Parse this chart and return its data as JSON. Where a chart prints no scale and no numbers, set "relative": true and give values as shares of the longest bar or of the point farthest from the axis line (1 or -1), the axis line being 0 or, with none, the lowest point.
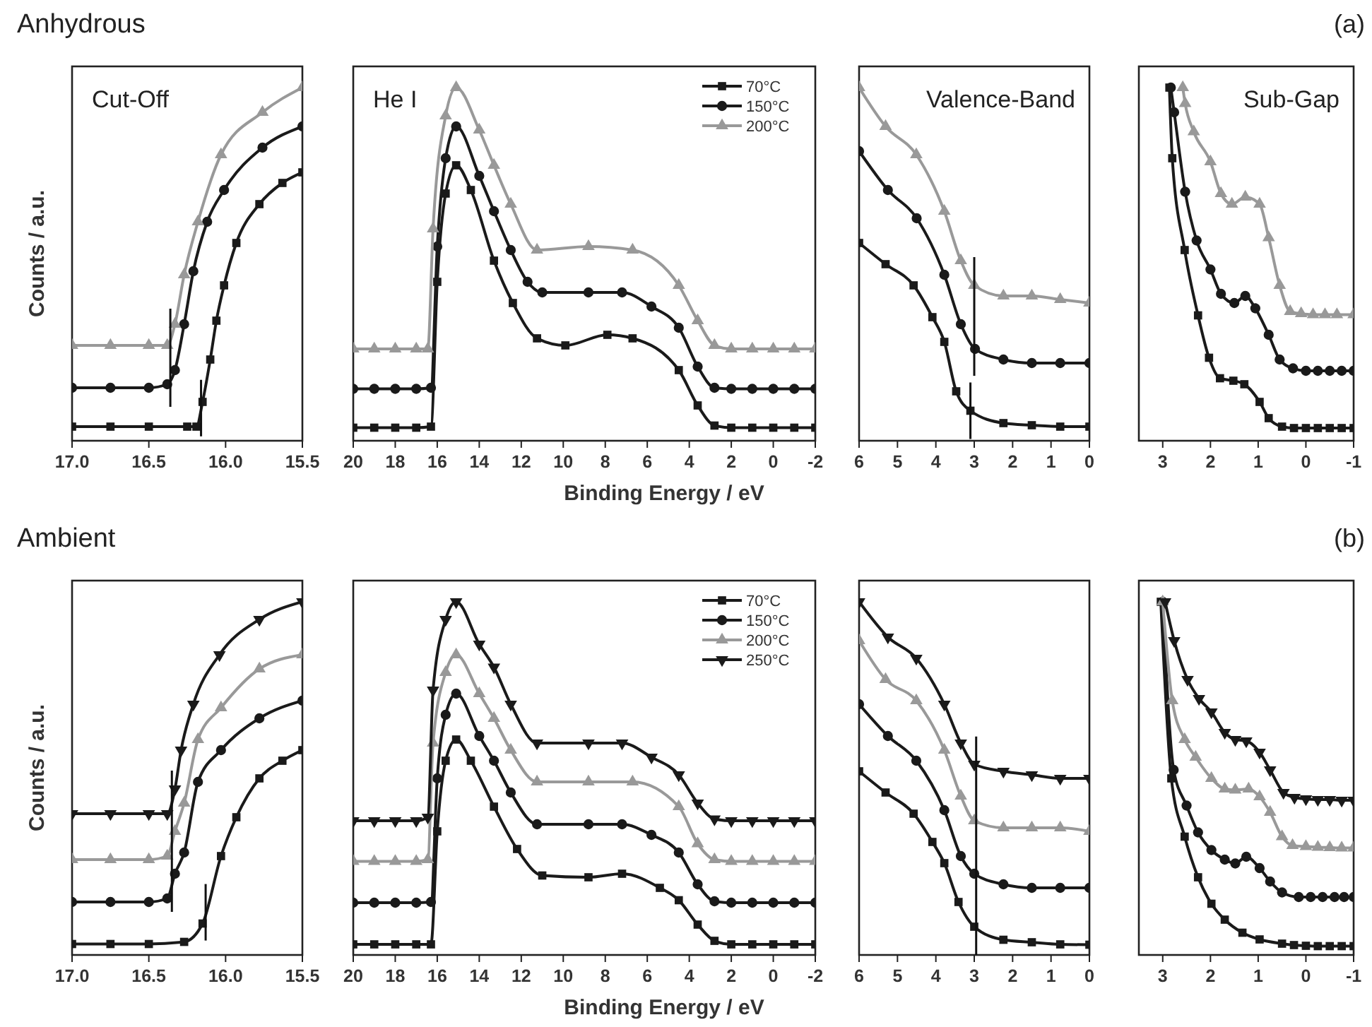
{
  "chart_data": [
    {
      "type": "line",
      "title": "Anhydrous",
      "subtitle": "Cut-Off",
      "ylabel": "Counts / a.u.",
      "relative": true,
      "xlim": [
        17,
        15.5
      ],
      "xticks": [
        {
          "value": 17,
          "label": "17.0"
        },
        {
          "value": 16.5,
          "label": "16.5"
        },
        {
          "value": 16,
          "label": "16.0"
        },
        {
          "value": 15.5,
          "label": "15.5"
        }
      ],
      "ref_lines": [
        {
          "axis": "x",
          "value": 16.16
        },
        {
          "axis": "x",
          "value": 16.36
        }
      ],
      "series": [
        {
          "color": "#1a1a1a",
          "marker": "square",
          "x": [
            17,
            16.75,
            16.5,
            16.25,
            16.19,
            16.15,
            16.1,
            16.06,
            16.01,
            15.93,
            15.78,
            15.63,
            15.5
          ],
          "values": [
            0.04,
            0.04,
            0.04,
            0.04,
            0.04,
            0.11,
            0.23,
            0.34,
            0.44,
            0.56,
            0.67,
            0.73,
            0.76
          ]
        },
        {
          "color": "#1a1a1a",
          "marker": "circle",
          "x": [
            17,
            16.75,
            16.5,
            16.38,
            16.33,
            16.27,
            16.21,
            16.12,
            16.01,
            15.76,
            15.5
          ],
          "values": [
            0.15,
            0.15,
            0.15,
            0.16,
            0.2,
            0.33,
            0.48,
            0.62,
            0.71,
            0.83,
            0.89
          ]
        },
        {
          "color": "#999999",
          "marker": "triangle",
          "x": [
            17,
            16.75,
            16.5,
            16.38,
            16.33,
            16.27,
            16.18,
            16.03,
            15.76,
            15.5
          ],
          "values": [
            0.27,
            0.27,
            0.27,
            0.27,
            0.33,
            0.47,
            0.62,
            0.81,
            0.93,
            1
          ]
        }
      ]
    },
    {
      "type": "line",
      "subtitle": "He I",
      "xlabel": "Binding Energy / eV",
      "legend": "top right",
      "relative": true,
      "xlim": [
        20,
        -2
      ],
      "xticks": [
        20,
        18,
        16,
        14,
        12,
        10,
        8,
        6,
        4,
        2,
        0,
        -2
      ],
      "series": [
        {
          "name": "70°C",
          "color": "#1a1a1a",
          "marker": "square",
          "x": [
            20,
            19,
            18,
            17,
            16.3,
            16,
            15.6,
            15.1,
            14.4,
            13.3,
            12.4,
            11.25,
            9.9,
            7.9,
            6.7,
            4.5,
            3.6,
            2.8,
            2,
            1,
            0,
            -1,
            -2
          ],
          "values": [
            0.037,
            0.037,
            0.037,
            0.037,
            0.04,
            0.45,
            0.7,
            0.78,
            0.71,
            0.51,
            0.39,
            0.29,
            0.27,
            0.3,
            0.29,
            0.2,
            0.1,
            0.043,
            0.037,
            0.037,
            0.037,
            0.037,
            0.037
          ]
        },
        {
          "name": "150°C",
          "color": "#1a1a1a",
          "marker": "circle",
          "x": [
            20,
            19,
            18,
            17,
            16.3,
            16,
            15.6,
            15.1,
            14,
            13.3,
            12.5,
            11.7,
            11,
            8.8,
            7.2,
            5.8,
            4.5,
            3.6,
            2.8,
            2,
            1,
            0,
            -1,
            -2
          ],
          "values": [
            0.147,
            0.147,
            0.147,
            0.147,
            0.15,
            0.55,
            0.8,
            0.89,
            0.75,
            0.65,
            0.54,
            0.45,
            0.42,
            0.42,
            0.42,
            0.38,
            0.32,
            0.21,
            0.15,
            0.147,
            0.147,
            0.147,
            0.147,
            0.147
          ]
        },
        {
          "name": "200°C",
          "color": "#999999",
          "marker": "triangle",
          "x": [
            20,
            19,
            18,
            17,
            16.45,
            16.2,
            15.6,
            15.1,
            14,
            13.3,
            12.5,
            11.25,
            8.8,
            6.7,
            4.5,
            3.6,
            2.8,
            2,
            1,
            0,
            -1,
            -2
          ],
          "values": [
            0.26,
            0.26,
            0.26,
            0.26,
            0.26,
            0.6,
            0.92,
            1,
            0.88,
            0.78,
            0.67,
            0.54,
            0.55,
            0.54,
            0.44,
            0.34,
            0.27,
            0.26,
            0.26,
            0.26,
            0.26,
            0.26
          ]
        }
      ]
    },
    {
      "type": "line",
      "subtitle": "Valence-Band",
      "relative": true,
      "xlim": [
        6,
        0
      ],
      "xticks": [
        6,
        5,
        4,
        3,
        2,
        1,
        0
      ],
      "ref_lines": [
        {
          "axis": "x",
          "value": 3.1
        },
        {
          "axis": "x",
          "value": 3
        }
      ],
      "series": [
        {
          "color": "#1a1a1a",
          "marker": "square",
          "x": [
            6,
            5.31,
            4.58,
            4.09,
            3.78,
            3.47,
            3.1,
            2.24,
            1.5,
            0.76,
            0
          ],
          "values": [
            0.56,
            0.5,
            0.44,
            0.35,
            0.28,
            0.14,
            0.085,
            0.05,
            0.044,
            0.04,
            0.04
          ]
        },
        {
          "color": "#1a1a1a",
          "marker": "circle",
          "x": [
            6,
            5.25,
            4.5,
            3.78,
            3.35,
            2.98,
            2.24,
            1.5,
            0.76,
            0
          ],
          "values": [
            0.82,
            0.71,
            0.63,
            0.47,
            0.33,
            0.26,
            0.23,
            0.22,
            0.22,
            0.22
          ]
        },
        {
          "color": "#999999",
          "marker": "triangle",
          "x": [
            6,
            5.31,
            4.51,
            3.78,
            3.35,
            3,
            2.24,
            1.5,
            0.76,
            0
          ],
          "values": [
            1,
            0.89,
            0.81,
            0.65,
            0.51,
            0.44,
            0.41,
            0.41,
            0.4,
            0.39
          ]
        }
      ]
    },
    {
      "type": "line",
      "subtitle": "Sub-Gap",
      "annotations": [
        "(a)"
      ],
      "relative": true,
      "xlim": [
        3.5,
        -1
      ],
      "xticks": [
        3,
        2,
        1,
        0,
        -1
      ],
      "series": [
        {
          "color": "#1a1a1a",
          "marker": "square",
          "x": [
            2.86,
            2.8,
            2.54,
            2.26,
            2.03,
            1.8,
            1.52,
            1.29,
            0.97,
            0.78,
            0.5,
            0.25,
            0,
            -0.25,
            -0.5,
            -0.75,
            -1
          ],
          "values": [
            1,
            0.8,
            0.54,
            0.355,
            0.235,
            0.177,
            0.17,
            0.16,
            0.11,
            0.064,
            0.04,
            0.036,
            0.036,
            0.036,
            0.036,
            0.036,
            0.036
          ]
        },
        {
          "color": "#1a1a1a",
          "marker": "circle",
          "x": [
            2.83,
            2.76,
            2.53,
            2.29,
            2,
            1.78,
            1.5,
            1.27,
            1.06,
            0.78,
            0.55,
            0.27,
            0,
            -0.25,
            -0.5,
            -0.75,
            -1
          ],
          "values": [
            1,
            0.93,
            0.705,
            0.567,
            0.485,
            0.416,
            0.39,
            0.41,
            0.375,
            0.3,
            0.23,
            0.205,
            0.198,
            0.198,
            0.198,
            0.198,
            0.198
          ]
        },
        {
          "color": "#999999",
          "marker": "triangle",
          "x": [
            2.58,
            2.53,
            2.35,
            2,
            1.78,
            1.55,
            1.27,
            0.97,
            0.78,
            0.55,
            0.33,
            0.1,
            -0.15,
            -0.4,
            -0.65,
            -1
          ],
          "values": [
            1,
            0.955,
            0.875,
            0.79,
            0.7,
            0.67,
            0.69,
            0.67,
            0.575,
            0.44,
            0.366,
            0.36,
            0.357,
            0.357,
            0.357,
            0.357
          ]
        }
      ]
    },
    {
      "type": "line",
      "title": "Ambient",
      "ylabel": "Counts / a.u.",
      "relative": true,
      "xlim": [
        17,
        15.5
      ],
      "xticks": [
        {
          "value": 17,
          "label": "17.0"
        },
        {
          "value": 16.5,
          "label": "16.5"
        },
        {
          "value": 16,
          "label": "16.0"
        },
        {
          "value": 15.5,
          "label": "15.5"
        }
      ],
      "ref_lines": [
        {
          "axis": "x",
          "value": 16.13
        },
        {
          "axis": "x",
          "value": 16.35
        }
      ],
      "series": [
        {
          "color": "#1a1a1a",
          "marker": "square",
          "x": [
            17,
            16.75,
            16.5,
            16.27,
            16.15,
            16.03,
            15.93,
            15.78,
            15.63,
            15.5
          ],
          "values": [
            0.031,
            0.031,
            0.031,
            0.037,
            0.089,
            0.28,
            0.39,
            0.5,
            0.55,
            0.58
          ]
        },
        {
          "color": "#1a1a1a",
          "marker": "circle",
          "x": [
            17,
            16.75,
            16.5,
            16.38,
            16.33,
            16.27,
            16.18,
            16.03,
            15.78,
            15.5
          ],
          "values": [
            0.15,
            0.15,
            0.15,
            0.16,
            0.23,
            0.29,
            0.49,
            0.58,
            0.67,
            0.72
          ]
        },
        {
          "color": "#999999",
          "marker": "triangle",
          "x": [
            17,
            16.75,
            16.5,
            16.38,
            16.33,
            16.27,
            16.18,
            16.03,
            15.78,
            15.5
          ],
          "values": [
            0.27,
            0.27,
            0.27,
            0.28,
            0.35,
            0.43,
            0.61,
            0.7,
            0.81,
            0.85
          ]
        },
        {
          "color": "#1a1a1a",
          "marker": "triangle-down",
          "x": [
            17,
            16.75,
            16.5,
            16.38,
            16.33,
            16.29,
            16.21,
            16.04,
            15.78,
            15.5
          ],
          "values": [
            0.4,
            0.4,
            0.4,
            0.4,
            0.47,
            0.58,
            0.71,
            0.85,
            0.95,
            1
          ]
        }
      ]
    },
    {
      "type": "line",
      "xlabel": "Binding Energy / eV",
      "legend": "top right",
      "relative": true,
      "xlim": [
        20,
        -2
      ],
      "xticks": [
        20,
        18,
        16,
        14,
        12,
        10,
        8,
        6,
        4,
        2,
        0,
        -2
      ],
      "series": [
        {
          "name": "70°C",
          "color": "#1a1a1a",
          "marker": "square",
          "x": [
            20,
            19,
            18,
            17,
            16.3,
            16,
            15.6,
            15.1,
            14.4,
            13.3,
            12.2,
            11,
            8.8,
            7.2,
            5.4,
            4.5,
            3.6,
            2.8,
            2,
            1,
            0,
            -1,
            -2
          ],
          "values": [
            0.03,
            0.03,
            0.03,
            0.03,
            0.03,
            0.35,
            0.55,
            0.61,
            0.55,
            0.42,
            0.3,
            0.225,
            0.22,
            0.23,
            0.19,
            0.155,
            0.086,
            0.04,
            0.03,
            0.03,
            0.03,
            0.03,
            0.03
          ]
        },
        {
          "name": "150°C",
          "color": "#1a1a1a",
          "marker": "circle",
          "x": [
            20,
            19,
            18,
            17,
            16.3,
            16,
            15.6,
            15.1,
            14,
            13.3,
            12.5,
            11.25,
            8.8,
            7.2,
            5.8,
            4.5,
            3.6,
            2.8,
            2,
            1,
            0,
            -1,
            -2
          ],
          "values": [
            0.148,
            0.148,
            0.148,
            0.148,
            0.15,
            0.5,
            0.68,
            0.74,
            0.62,
            0.55,
            0.46,
            0.37,
            0.37,
            0.37,
            0.34,
            0.29,
            0.2,
            0.152,
            0.148,
            0.148,
            0.148,
            0.148,
            0.148
          ]
        },
        {
          "name": "200°C",
          "color": "#999999",
          "marker": "triangle",
          "x": [
            20,
            19,
            18,
            17,
            16.45,
            16.2,
            15.6,
            15.1,
            14,
            13.3,
            12.5,
            11.25,
            8.8,
            6.7,
            4.5,
            3.6,
            2.8,
            2,
            1,
            0,
            -1,
            -2
          ],
          "values": [
            0.265,
            0.265,
            0.265,
            0.265,
            0.27,
            0.6,
            0.8,
            0.85,
            0.74,
            0.67,
            0.58,
            0.49,
            0.49,
            0.49,
            0.42,
            0.315,
            0.27,
            0.265,
            0.265,
            0.265,
            0.265,
            0.265
          ]
        },
        {
          "name": "250°C",
          "color": "#1a1a1a",
          "marker": "triangle-down",
          "x": [
            20,
            19,
            18,
            17,
            16.45,
            16.2,
            15.6,
            15.1,
            14,
            13.3,
            12.5,
            11.25,
            8.8,
            7.2,
            5.8,
            4.5,
            3.6,
            2.8,
            2,
            1,
            0,
            -1,
            -2
          ],
          "values": [
            0.38,
            0.38,
            0.38,
            0.38,
            0.39,
            0.75,
            0.95,
            1,
            0.88,
            0.815,
            0.71,
            0.6,
            0.6,
            0.6,
            0.56,
            0.51,
            0.43,
            0.385,
            0.38,
            0.38,
            0.38,
            0.38,
            0.38
          ]
        }
      ]
    },
    {
      "type": "line",
      "relative": true,
      "xlim": [
        6,
        0
      ],
      "xticks": [
        6,
        5,
        4,
        3,
        2,
        1,
        0
      ],
      "ref_lines": [
        {
          "axis": "x",
          "value": 2.95
        }
      ],
      "series": [
        {
          "color": "#1a1a1a",
          "marker": "square",
          "x": [
            6,
            5.31,
            4.58,
            4.09,
            3.78,
            3.41,
            3,
            2.24,
            1.5,
            0.76,
            0
          ],
          "values": [
            0.52,
            0.46,
            0.4,
            0.32,
            0.26,
            0.15,
            0.08,
            0.043,
            0.036,
            0.03,
            0.029
          ]
        },
        {
          "color": "#1a1a1a",
          "marker": "circle",
          "x": [
            6,
            5.25,
            4.51,
            3.78,
            3.35,
            3,
            2.24,
            1.5,
            0.76,
            0
          ],
          "values": [
            0.71,
            0.62,
            0.55,
            0.41,
            0.28,
            0.23,
            0.2,
            0.19,
            0.19,
            0.19
          ]
        },
        {
          "color": "#999999",
          "marker": "triangle",
          "x": [
            6,
            5.31,
            4.51,
            3.78,
            3.35,
            3,
            2.24,
            1.5,
            0.76,
            0
          ],
          "values": [
            0.89,
            0.78,
            0.72,
            0.58,
            0.45,
            0.38,
            0.36,
            0.36,
            0.36,
            0.35
          ]
        },
        {
          "color": "#1a1a1a",
          "marker": "triangle-down",
          "x": [
            6,
            5.25,
            4.51,
            3.78,
            3.35,
            3,
            2.24,
            1.5,
            0.76,
            0
          ],
          "values": [
            1,
            0.9,
            0.84,
            0.71,
            0.6,
            0.54,
            0.52,
            0.51,
            0.5,
            0.5
          ]
        }
      ]
    },
    {
      "type": "line",
      "annotations": [
        "(b)"
      ],
      "relative": true,
      "xlim": [
        3.5,
        -1
      ],
      "xticks": [
        3,
        2,
        1,
        0,
        -1
      ],
      "series": [
        {
          "color": "#1a1a1a",
          "marker": "square",
          "x": [
            3.04,
            2.82,
            2.54,
            2.26,
            1.98,
            1.7,
            1.33,
            0.97,
            0.5,
            0.25,
            0,
            -0.25,
            -0.5,
            -0.75,
            -1
          ],
          "values": [
            1,
            0.5,
            0.335,
            0.22,
            0.145,
            0.1,
            0.063,
            0.044,
            0.032,
            0.028,
            0.026,
            0.025,
            0.025,
            0.025,
            0.025
          ]
        },
        {
          "color": "#1a1a1a",
          "marker": "circle",
          "x": [
            3,
            2.77,
            2.5,
            2.26,
            1.98,
            1.7,
            1.48,
            1.25,
            0.97,
            0.75,
            0.5,
            0.15,
            -0.1,
            -0.35,
            -0.6,
            -0.8,
            -1
          ],
          "values": [
            1,
            0.524,
            0.423,
            0.347,
            0.297,
            0.27,
            0.259,
            0.278,
            0.246,
            0.208,
            0.177,
            0.164,
            0.164,
            0.164,
            0.164,
            0.164,
            0.164
          ]
        },
        {
          "color": "#999999",
          "marker": "triangle",
          "x": [
            3,
            2.8,
            2.54,
            2.31,
            1.98,
            1.7,
            1.48,
            1.2,
            0.97,
            0.75,
            0.5,
            0.28,
            0,
            -0.25,
            -0.5,
            -0.75,
            -1
          ],
          "values": [
            1,
            0.72,
            0.61,
            0.56,
            0.5,
            0.47,
            0.467,
            0.47,
            0.448,
            0.404,
            0.335,
            0.31,
            0.307,
            0.305,
            0.304,
            0.303,
            0.303
          ]
        },
        {
          "color": "#1a1a1a",
          "marker": "triangle-down",
          "x": [
            2.95,
            2.76,
            2.48,
            2.24,
            1.98,
            1.7,
            1.48,
            1.25,
            0.97,
            0.75,
            0.47,
            0.24,
            0,
            -0.25,
            -0.5,
            -0.75,
            -1
          ],
          "values": [
            1,
            0.89,
            0.78,
            0.726,
            0.688,
            0.63,
            0.61,
            0.606,
            0.574,
            0.524,
            0.46,
            0.446,
            0.442,
            0.44,
            0.44,
            0.438,
            0.438
          ]
        }
      ]
    }
  ]
}
